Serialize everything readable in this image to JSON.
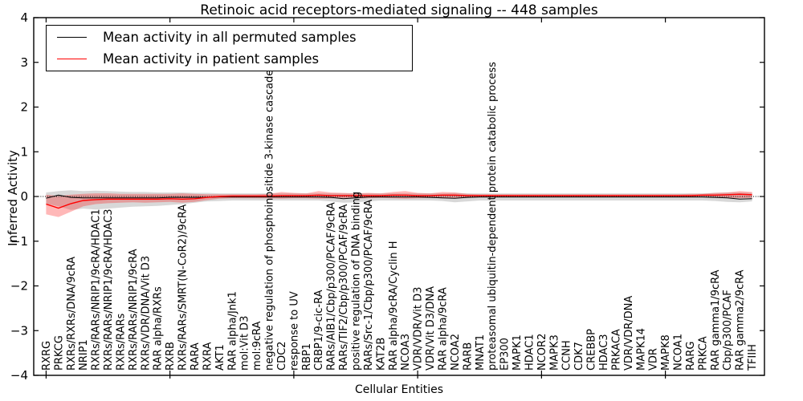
{
  "figure": {
    "title": "Retinoic acid receptors-mediated signaling -- 448 samples",
    "xlabel": "Cellular Entities",
    "ylabel": "Inferred Activity"
  },
  "legend": {
    "items": [
      {
        "label": "Mean activity in all permuted samples",
        "color": "#000000"
      },
      {
        "label": "Mean activity in patient samples",
        "color": "#ff0000"
      }
    ]
  },
  "chart_data": {
    "type": "line",
    "title": "Retinoic acid receptors-mediated signaling -- 448 samples",
    "xlabel": "Cellular Entities",
    "ylabel": "Inferred Activity",
    "ylim": [
      -4,
      4
    ],
    "yticks": [
      4,
      3,
      2,
      1,
      0,
      -1,
      -2,
      -3,
      -4
    ],
    "x_major_tick_indices": [
      0,
      10,
      20,
      30,
      40,
      50
    ],
    "grid": false,
    "legend_position": "upper left",
    "zero_line": {
      "y": 0,
      "style": "dotted",
      "color": "#000000"
    },
    "categories": [
      "RXRG",
      "PRKCG",
      "RXRs/RXRs/DNA/9cRA",
      "NRIP1",
      "RXRs/RARs/NRIP1/9cRA/HDAC1",
      "RXRs/RARs/NRIP1/9cRA/HDAC3",
      "RXRs/RARs",
      "RXRs/RARs/NRIP1/9cRA",
      "RXRs/VDR/DNA/Vit D3",
      "RAR alpha/RXRs",
      "RXRB",
      "RXRs/RARs/SMRT(N-CoR2)/9cRA",
      "RARA",
      "RXRA",
      "AKT1",
      "RAR alpha/Jnk1",
      "mol:Vit D3",
      "mol:9cRA",
      "negative regulation of phosphoinositide 3-kinase cascade",
      "CDC2",
      "response to UV",
      "RBP1",
      "CRBP1/9-cic-RA",
      "RARs/AIB1/Cbp/p300/PCAF/9cRA",
      "RARs/TIF2/Cbp/p300/PCAF/9cRA",
      "positive regulation of DNA binding",
      "RARs/Src-1/Cbp/p300/PCAF/9cRA",
      "KAT2B",
      "RAR alpha/9cRA/Cyclin H",
      "NCOA3",
      "VDR/VDR/Vit D3",
      "VDR/Vit D3/DNA",
      "RAR alpha/9cRA",
      "NCOA2",
      "RARB",
      "MNAT1",
      "proteasomal ubiquitin-dependent protein catabolic process",
      "EP300",
      "MAPK1",
      "HDAC1",
      "NCOR2",
      "MAPK3",
      "CCNH",
      "CDK7",
      "CREBBP",
      "HDAC3",
      "PRKACA",
      "VDR/VDR/DNA",
      "MAPK14",
      "VDR",
      "MAPK8",
      "NCOA1",
      "RARG",
      "PRKCA",
      "RAR gamma1/9cRA",
      "Cbp/p300/PCAF",
      "RAR gamma2/9cRA",
      "TFIIH"
    ],
    "series": [
      {
        "name": "Mean activity in all permuted samples",
        "color": "#000000",
        "values": [
          -0.04,
          0.03,
          -0.02,
          -0.03,
          -0.03,
          -0.03,
          -0.03,
          -0.03,
          -0.03,
          -0.03,
          -0.02,
          -0.02,
          -0.02,
          -0.02,
          -0.01,
          -0.01,
          -0.01,
          -0.01,
          -0.01,
          -0.01,
          -0.01,
          -0.01,
          -0.01,
          -0.02,
          -0.05,
          -0.03,
          -0.01,
          -0.01,
          -0.01,
          -0.01,
          -0.01,
          -0.02,
          -0.03,
          -0.04,
          -0.02,
          -0.01,
          -0.01,
          -0.01,
          -0.01,
          -0.01,
          -0.01,
          -0.01,
          -0.01,
          -0.01,
          -0.01,
          -0.01,
          -0.01,
          -0.01,
          -0.01,
          -0.01,
          -0.01,
          -0.01,
          -0.01,
          -0.01,
          -0.02,
          -0.03,
          -0.06,
          -0.05
        ]
      },
      {
        "name": "Mean activity in patient samples",
        "color": "#ff0000",
        "values": [
          -0.17,
          -0.26,
          -0.16,
          -0.09,
          -0.07,
          -0.06,
          -0.06,
          -0.06,
          -0.06,
          -0.06,
          -0.05,
          -0.06,
          -0.05,
          -0.02,
          0.0,
          0.01,
          0.01,
          0.01,
          0.01,
          0.02,
          0.02,
          0.02,
          0.03,
          0.02,
          0.02,
          0.02,
          0.02,
          0.02,
          0.03,
          0.03,
          0.02,
          0.02,
          0.03,
          0.03,
          0.02,
          0.02,
          0.02,
          0.02,
          0.02,
          0.02,
          0.02,
          0.02,
          0.02,
          0.02,
          0.02,
          0.02,
          0.02,
          0.02,
          0.02,
          0.02,
          0.02,
          0.02,
          0.02,
          0.03,
          0.03,
          0.04,
          0.05,
          0.04
        ]
      }
    ],
    "bands": [
      {
        "name": "permuted-samples-band",
        "color": "#a8a8a8",
        "opacity": 0.45,
        "upper": [
          0.09,
          0.12,
          0.14,
          0.12,
          0.13,
          0.12,
          0.11,
          0.1,
          0.1,
          0.09,
          0.09,
          0.09,
          0.08,
          0.08,
          0.07,
          0.07,
          0.07,
          0.07,
          0.07,
          0.07,
          0.07,
          0.07,
          0.07,
          0.07,
          0.07,
          0.07,
          0.07,
          0.07,
          0.07,
          0.07,
          0.07,
          0.07,
          0.07,
          0.08,
          0.07,
          0.07,
          0.07,
          0.07,
          0.07,
          0.07,
          0.07,
          0.07,
          0.07,
          0.07,
          0.07,
          0.07,
          0.07,
          0.07,
          0.07,
          0.07,
          0.07,
          0.07,
          0.07,
          0.07,
          0.08,
          0.09,
          0.09,
          0.08
        ],
        "lower": [
          -0.16,
          -0.22,
          -0.3,
          -0.27,
          -0.29,
          -0.27,
          -0.25,
          -0.23,
          -0.22,
          -0.21,
          -0.19,
          -0.17,
          -0.14,
          -0.11,
          -0.1,
          -0.09,
          -0.09,
          -0.09,
          -0.09,
          -0.09,
          -0.09,
          -0.09,
          -0.09,
          -0.11,
          -0.14,
          -0.13,
          -0.11,
          -0.09,
          -0.09,
          -0.09,
          -0.09,
          -0.09,
          -0.1,
          -0.13,
          -0.11,
          -0.09,
          -0.09,
          -0.09,
          -0.09,
          -0.09,
          -0.09,
          -0.09,
          -0.09,
          -0.09,
          -0.09,
          -0.09,
          -0.09,
          -0.09,
          -0.09,
          -0.09,
          -0.09,
          -0.09,
          -0.09,
          -0.09,
          -0.1,
          -0.12,
          -0.13,
          -0.11
        ]
      },
      {
        "name": "patient-samples-band",
        "color": "#ff0000",
        "opacity": 0.28,
        "upper": [
          0.04,
          0.01,
          0.04,
          0.06,
          0.07,
          0.07,
          0.06,
          0.06,
          0.06,
          0.06,
          0.06,
          0.07,
          0.06,
          0.05,
          0.05,
          0.05,
          0.05,
          0.05,
          0.06,
          0.1,
          0.08,
          0.07,
          0.12,
          0.09,
          0.08,
          0.07,
          0.08,
          0.07,
          0.1,
          0.12,
          0.08,
          0.07,
          0.1,
          0.09,
          0.06,
          0.05,
          0.05,
          0.05,
          0.05,
          0.05,
          0.05,
          0.05,
          0.05,
          0.05,
          0.05,
          0.05,
          0.05,
          0.05,
          0.05,
          0.05,
          0.05,
          0.05,
          0.06,
          0.06,
          0.08,
          0.09,
          0.12,
          0.1
        ],
        "lower": [
          -0.4,
          -0.46,
          -0.34,
          -0.22,
          -0.17,
          -0.15,
          -0.14,
          -0.13,
          -0.14,
          -0.13,
          -0.12,
          -0.14,
          -0.12,
          -0.08,
          -0.05,
          -0.04,
          -0.04,
          -0.04,
          -0.04,
          -0.05,
          -0.04,
          -0.04,
          -0.05,
          -0.04,
          -0.04,
          -0.04,
          -0.04,
          -0.03,
          -0.04,
          -0.05,
          -0.04,
          -0.03,
          -0.04,
          -0.04,
          -0.03,
          -0.02,
          -0.02,
          -0.02,
          -0.02,
          -0.02,
          -0.02,
          -0.02,
          -0.02,
          -0.02,
          -0.02,
          -0.02,
          -0.02,
          -0.02,
          -0.02,
          -0.02,
          -0.02,
          -0.02,
          -0.02,
          -0.02,
          -0.02,
          -0.03,
          -0.04,
          -0.03
        ]
      }
    ]
  }
}
